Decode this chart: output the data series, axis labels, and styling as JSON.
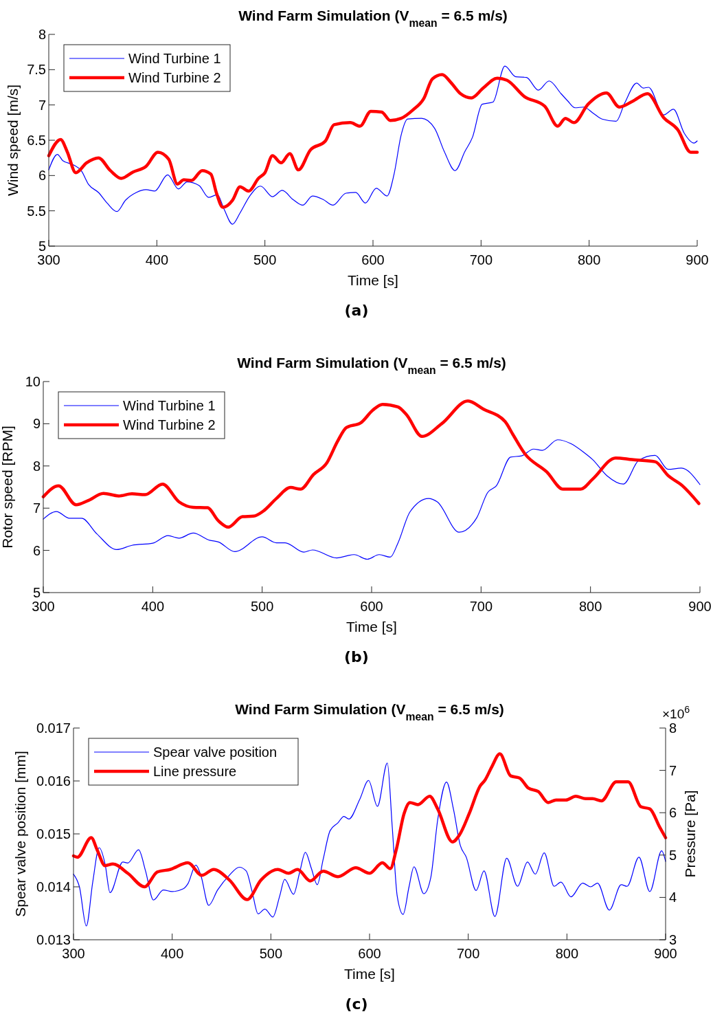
{
  "chart_data": [
    {
      "type": "line",
      "title": "Wind Farm Simulation (V$_{mean}$ = 6.5 m/s)",
      "xlabel": "Time [s]",
      "ylabel": "Wind speed [m/s]",
      "annotations": [
        "(a)"
      ],
      "xlim": [
        300,
        900
      ],
      "xticks": [
        300,
        400,
        500,
        600,
        700,
        800,
        900
      ],
      "ylim": [
        5,
        8
      ],
      "yticks": [
        5,
        5.5,
        6,
        6.5,
        7,
        7.5,
        8
      ],
      "legend": "top left",
      "grid": false,
      "series": [
        {
          "name": "Wind Turbine 1",
          "color": "#0000ff",
          "x": [
            300,
            308,
            313,
            323,
            330,
            337,
            346,
            354,
            363,
            371,
            381,
            390,
            398,
            410,
            420,
            428,
            439,
            448,
            456,
            462,
            470,
            477,
            486,
            496,
            507,
            516,
            526,
            535,
            544,
            554,
            563,
            575,
            584,
            593,
            603,
            613,
            619.5,
            626,
            632,
            645,
            657,
            666,
            676,
            685,
            692,
            701,
            711,
            722,
            732,
            742,
            753,
            763,
            774,
            780,
            787,
            795,
            804,
            812,
            825,
            833,
            844,
            850,
            855,
            869,
            878,
            888,
            897,
            900
          ],
          "values": [
            6.08,
            6.3,
            6.21,
            6.15,
            6.07,
            5.87,
            5.76,
            5.61,
            5.49,
            5.65,
            5.76,
            5.8,
            5.78,
            6.01,
            5.81,
            5.91,
            5.86,
            5.69,
            5.73,
            5.53,
            5.31,
            5.47,
            5.71,
            5.85,
            5.7,
            5.79,
            5.66,
            5.58,
            5.71,
            5.66,
            5.58,
            5.75,
            5.76,
            5.61,
            5.82,
            5.71,
            6.02,
            6.57,
            6.8,
            6.81,
            6.67,
            6.34,
            6.07,
            6.34,
            6.54,
            7.01,
            7.04,
            7.55,
            7.4,
            7.39,
            7.21,
            7.34,
            7.16,
            7.06,
            6.96,
            6.97,
            6.88,
            6.8,
            6.77,
            7.03,
            7.31,
            7.24,
            7.25,
            6.86,
            6.94,
            6.6,
            6.46,
            6.49
          ]
        },
        {
          "name": "Wind Turbine 2",
          "color": "#ff0000",
          "x": [
            300,
            311,
            317,
            325,
            335,
            346,
            357,
            367,
            378,
            390,
            401,
            411,
            419,
            425,
            432,
            442,
            450,
            455,
            461,
            470,
            477,
            485,
            494,
            500,
            507,
            515,
            523,
            531,
            542,
            556,
            564,
            579,
            588,
            598,
            608,
            616,
            626,
            637,
            647,
            655,
            664,
            672,
            681,
            691,
            702,
            715,
            724,
            740,
            759,
            771,
            778,
            786,
            799,
            816,
            828,
            840,
            854,
            869,
            882,
            894,
            900
          ],
          "values": [
            6.28,
            6.51,
            6.34,
            6.04,
            6.18,
            6.25,
            6.07,
            5.96,
            6.05,
            6.13,
            6.33,
            6.23,
            5.88,
            5.94,
            5.93,
            6.07,
            6.02,
            5.76,
            5.55,
            5.65,
            5.84,
            5.78,
            5.96,
            6.04,
            6.28,
            6.18,
            6.31,
            6.08,
            6.36,
            6.49,
            6.72,
            6.75,
            6.7,
            6.91,
            6.9,
            6.78,
            6.81,
            6.93,
            7.09,
            7.37,
            7.43,
            7.32,
            7.16,
            7.1,
            7.24,
            7.38,
            7.35,
            7.12,
            6.98,
            6.7,
            6.81,
            6.75,
            7.01,
            7.17,
            6.97,
            7.05,
            7.16,
            6.82,
            6.65,
            6.33,
            6.33
          ]
        }
      ]
    },
    {
      "type": "line",
      "title": "Wind Farm Simulation (V$_{mean}$ = 6.5 m/s)",
      "xlabel": "Time [s]",
      "ylabel": "Rotor speed [RPM]",
      "annotations": [
        "(b)"
      ],
      "xlim": [
        300,
        900
      ],
      "xticks": [
        300,
        400,
        500,
        600,
        700,
        800,
        900
      ],
      "ylim": [
        5,
        10
      ],
      "yticks": [
        5,
        6,
        7,
        8,
        9,
        10
      ],
      "legend": "top left",
      "grid": false,
      "series": [
        {
          "name": "Wind Turbine 1",
          "color": "#0000ff",
          "x": [
            300,
            312,
            324,
            335,
            349,
            367,
            381,
            400,
            414,
            424,
            437,
            452,
            460,
            475,
            500,
            513,
            521,
            538,
            546,
            568,
            584,
            596,
            607,
            617,
            624,
            635,
            652,
            660,
            680,
            696,
            706,
            714,
            727,
            737,
            748,
            756,
            770,
            782,
            794,
            802,
            815,
            830,
            844,
            859,
            871,
            883,
            900
          ],
          "values": [
            6.74,
            6.92,
            6.76,
            6.76,
            6.39,
            6.02,
            6.12,
            6.17,
            6.35,
            6.29,
            6.41,
            6.24,
            6.2,
            5.97,
            6.32,
            6.18,
            6.18,
            5.96,
            6.01,
            5.82,
            5.9,
            5.79,
            5.9,
            5.84,
            6.17,
            6.91,
            7.23,
            7.15,
            6.43,
            6.77,
            7.37,
            7.53,
            8.21,
            8.24,
            8.4,
            8.37,
            8.62,
            8.53,
            8.32,
            8.15,
            7.77,
            7.57,
            8.13,
            8.25,
            7.92,
            7.95,
            7.56
          ]
        },
        {
          "name": "Wind Turbine 2",
          "color": "#ff0000",
          "x": [
            300,
            314,
            330,
            341,
            355,
            369,
            381,
            393,
            409,
            424,
            437,
            450,
            460,
            469,
            482,
            492,
            501,
            513,
            526,
            535,
            547,
            559,
            569,
            577,
            590,
            601,
            610,
            624,
            632,
            646,
            664,
            688,
            702,
            722,
            729,
            740,
            760,
            775,
            791,
            802,
            823,
            838,
            859,
            871,
            884,
            899
          ],
          "values": [
            7.27,
            7.53,
            7.08,
            7.18,
            7.35,
            7.29,
            7.34,
            7.32,
            7.57,
            7.15,
            7.02,
            7.01,
            6.7,
            6.55,
            6.8,
            6.81,
            6.93,
            7.23,
            7.49,
            7.45,
            7.8,
            8.07,
            8.59,
            8.91,
            9.02,
            9.32,
            9.46,
            9.4,
            9.21,
            8.7,
            9.0,
            9.54,
            9.35,
            9.05,
            8.75,
            8.29,
            7.86,
            7.45,
            7.45,
            7.69,
            8.19,
            8.15,
            8.1,
            7.77,
            7.53,
            7.11
          ]
        }
      ]
    },
    {
      "type": "line",
      "title": "Wind Farm Simulation (V$_{mean}$ = 6.5 m/s)",
      "xlabel": "Time [s]",
      "ylabel": "Spear valve position [mm]",
      "y2label": "Pressure [Pa]",
      "annotations": [
        "×10$^{6}$",
        "(c)"
      ],
      "xlim": [
        300,
        900
      ],
      "xticks": [
        300,
        400,
        500,
        600,
        700,
        800,
        900
      ],
      "ylim": [
        0.013,
        0.017
      ],
      "yticks": [
        0.013,
        0.014,
        0.015,
        0.016,
        0.017
      ],
      "y2lim": [
        3,
        8
      ],
      "y2ticks": [
        3,
        4,
        5,
        6,
        7,
        8
      ],
      "legend": "top left",
      "grid": false,
      "series": [
        {
          "name": "Spear valve position",
          "color": "#0000ff",
          "x": [
            300,
            306,
            313,
            319.5,
            326,
            332,
            337,
            350,
            355,
            366,
            373,
            381,
            391,
            400,
            411,
            416,
            424,
            429,
            437,
            446,
            458,
            468,
            475,
            481,
            487,
            494,
            502,
            509,
            514,
            523,
            529,
            535,
            541,
            547,
            553,
            560,
            568,
            574,
            579,
            590,
            599,
            608,
            618,
            623,
            628,
            634,
            640,
            645,
            655,
            662,
            669,
            678,
            685,
            692,
            698,
            708,
            716,
            727,
            739,
            750,
            760,
            768,
            777,
            787,
            794,
            804,
            816,
            824,
            831,
            843,
            855,
            861,
            873,
            884,
            896,
            900
          ],
          "values": [
            0.01424,
            0.014,
            0.01326,
            0.01409,
            0.01474,
            0.01443,
            0.01389,
            0.01447,
            0.01445,
            0.0147,
            0.0143,
            0.01375,
            0.01394,
            0.01391,
            0.01396,
            0.01406,
            0.01441,
            0.01422,
            0.01365,
            0.01394,
            0.01422,
            0.01437,
            0.0143,
            0.01391,
            0.01349,
            0.01358,
            0.01343,
            0.01383,
            0.01414,
            0.01386,
            0.01426,
            0.01465,
            0.01435,
            0.01404,
            0.01452,
            0.01506,
            0.01521,
            0.01533,
            0.01528,
            0.01565,
            0.01601,
            0.01552,
            0.01634,
            0.01513,
            0.01383,
            0.01348,
            0.014,
            0.01438,
            0.01387,
            0.01417,
            0.01526,
            0.01598,
            0.01547,
            0.01478,
            0.01456,
            0.01393,
            0.0143,
            0.01344,
            0.01454,
            0.01401,
            0.01447,
            0.01424,
            0.01464,
            0.01401,
            0.01409,
            0.01381,
            0.01407,
            0.014,
            0.01407,
            0.01356,
            0.01404,
            0.01401,
            0.01456,
            0.01391,
            0.01468,
            0.01448
          ]
        },
        {
          "name": "Line pressure",
          "color": "#ff0000",
          "axis": "y2",
          "x": [
            300,
            304,
            318,
            324,
            332,
            340,
            355,
            372,
            385,
            398,
            416,
            430,
            442,
            458,
            476,
            490,
            507,
            518,
            527,
            540,
            553,
            568,
            586,
            600,
            613,
            621,
            627,
            635,
            641,
            649,
            661,
            669,
            684,
            691,
            701,
            712,
            717,
            724,
            732,
            743,
            752,
            761,
            771,
            781,
            789,
            799,
            809,
            819,
            826,
            835,
            850,
            862,
            875,
            884,
            894,
            900
          ],
          "values": [
            4.98,
            4.95,
            5.41,
            5.12,
            4.75,
            4.79,
            4.57,
            4.25,
            4.6,
            4.66,
            4.82,
            4.52,
            4.66,
            4.41,
            3.95,
            4.41,
            4.66,
            4.57,
            4.66,
            4.39,
            4.62,
            4.49,
            4.7,
            4.57,
            4.82,
            4.68,
            5.12,
            5.98,
            6.24,
            6.19,
            6.39,
            6.09,
            5.31,
            5.47,
            5.98,
            6.63,
            6.77,
            7.09,
            7.39,
            6.87,
            6.82,
            6.58,
            6.5,
            6.24,
            6.3,
            6.3,
            6.39,
            6.33,
            6.33,
            6.28,
            6.73,
            6.73,
            6.14,
            6.09,
            5.66,
            5.41
          ]
        }
      ]
    }
  ]
}
